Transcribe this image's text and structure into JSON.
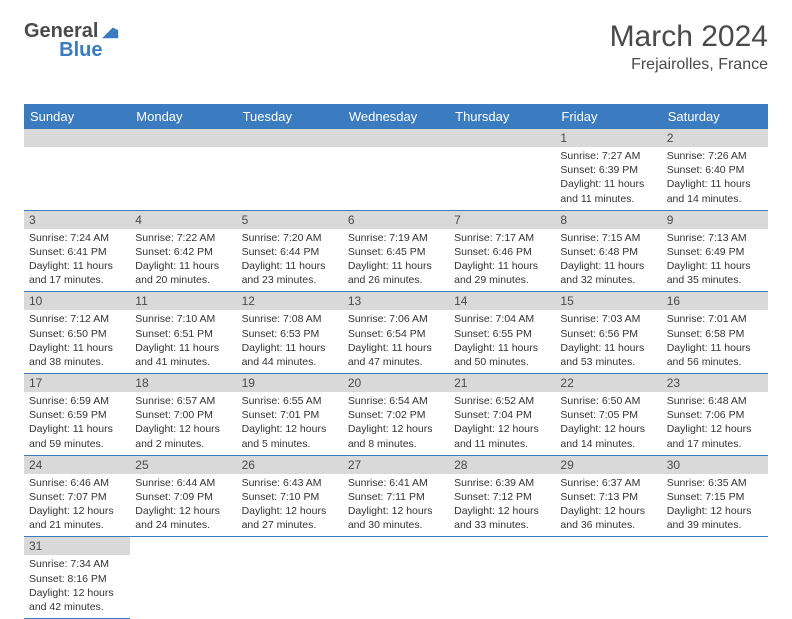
{
  "logo": {
    "part1": "General",
    "part2": "Blue"
  },
  "title": "March 2024",
  "location": "Frejairolles, France",
  "colors": {
    "header_bg": "#3b7bbf",
    "header_text": "#ffffff",
    "daynum_bg": "#d9d9d9",
    "cell_border": "#3b7bbf",
    "text": "#333333"
  },
  "weekdays": [
    "Sunday",
    "Monday",
    "Tuesday",
    "Wednesday",
    "Thursday",
    "Friday",
    "Saturday"
  ],
  "weeks": [
    [
      null,
      null,
      null,
      null,
      null,
      {
        "n": "1",
        "sunrise": "7:27 AM",
        "sunset": "6:39 PM",
        "dl_h": "11",
        "dl_m": "11"
      },
      {
        "n": "2",
        "sunrise": "7:26 AM",
        "sunset": "6:40 PM",
        "dl_h": "11",
        "dl_m": "14"
      }
    ],
    [
      {
        "n": "3",
        "sunrise": "7:24 AM",
        "sunset": "6:41 PM",
        "dl_h": "11",
        "dl_m": "17"
      },
      {
        "n": "4",
        "sunrise": "7:22 AM",
        "sunset": "6:42 PM",
        "dl_h": "11",
        "dl_m": "20"
      },
      {
        "n": "5",
        "sunrise": "7:20 AM",
        "sunset": "6:44 PM",
        "dl_h": "11",
        "dl_m": "23"
      },
      {
        "n": "6",
        "sunrise": "7:19 AM",
        "sunset": "6:45 PM",
        "dl_h": "11",
        "dl_m": "26"
      },
      {
        "n": "7",
        "sunrise": "7:17 AM",
        "sunset": "6:46 PM",
        "dl_h": "11",
        "dl_m": "29"
      },
      {
        "n": "8",
        "sunrise": "7:15 AM",
        "sunset": "6:48 PM",
        "dl_h": "11",
        "dl_m": "32"
      },
      {
        "n": "9",
        "sunrise": "7:13 AM",
        "sunset": "6:49 PM",
        "dl_h": "11",
        "dl_m": "35"
      }
    ],
    [
      {
        "n": "10",
        "sunrise": "7:12 AM",
        "sunset": "6:50 PM",
        "dl_h": "11",
        "dl_m": "38"
      },
      {
        "n": "11",
        "sunrise": "7:10 AM",
        "sunset": "6:51 PM",
        "dl_h": "11",
        "dl_m": "41"
      },
      {
        "n": "12",
        "sunrise": "7:08 AM",
        "sunset": "6:53 PM",
        "dl_h": "11",
        "dl_m": "44"
      },
      {
        "n": "13",
        "sunrise": "7:06 AM",
        "sunset": "6:54 PM",
        "dl_h": "11",
        "dl_m": "47"
      },
      {
        "n": "14",
        "sunrise": "7:04 AM",
        "sunset": "6:55 PM",
        "dl_h": "11",
        "dl_m": "50"
      },
      {
        "n": "15",
        "sunrise": "7:03 AM",
        "sunset": "6:56 PM",
        "dl_h": "11",
        "dl_m": "53"
      },
      {
        "n": "16",
        "sunrise": "7:01 AM",
        "sunset": "6:58 PM",
        "dl_h": "11",
        "dl_m": "56"
      }
    ],
    [
      {
        "n": "17",
        "sunrise": "6:59 AM",
        "sunset": "6:59 PM",
        "dl_h": "11",
        "dl_m": "59"
      },
      {
        "n": "18",
        "sunrise": "6:57 AM",
        "sunset": "7:00 PM",
        "dl_h": "12",
        "dl_m": "2"
      },
      {
        "n": "19",
        "sunrise": "6:55 AM",
        "sunset": "7:01 PM",
        "dl_h": "12",
        "dl_m": "5"
      },
      {
        "n": "20",
        "sunrise": "6:54 AM",
        "sunset": "7:02 PM",
        "dl_h": "12",
        "dl_m": "8"
      },
      {
        "n": "21",
        "sunrise": "6:52 AM",
        "sunset": "7:04 PM",
        "dl_h": "12",
        "dl_m": "11"
      },
      {
        "n": "22",
        "sunrise": "6:50 AM",
        "sunset": "7:05 PM",
        "dl_h": "12",
        "dl_m": "14"
      },
      {
        "n": "23",
        "sunrise": "6:48 AM",
        "sunset": "7:06 PM",
        "dl_h": "12",
        "dl_m": "17"
      }
    ],
    [
      {
        "n": "24",
        "sunrise": "6:46 AM",
        "sunset": "7:07 PM",
        "dl_h": "12",
        "dl_m": "21"
      },
      {
        "n": "25",
        "sunrise": "6:44 AM",
        "sunset": "7:09 PM",
        "dl_h": "12",
        "dl_m": "24"
      },
      {
        "n": "26",
        "sunrise": "6:43 AM",
        "sunset": "7:10 PM",
        "dl_h": "12",
        "dl_m": "27"
      },
      {
        "n": "27",
        "sunrise": "6:41 AM",
        "sunset": "7:11 PM",
        "dl_h": "12",
        "dl_m": "30"
      },
      {
        "n": "28",
        "sunrise": "6:39 AM",
        "sunset": "7:12 PM",
        "dl_h": "12",
        "dl_m": "33"
      },
      {
        "n": "29",
        "sunrise": "6:37 AM",
        "sunset": "7:13 PM",
        "dl_h": "12",
        "dl_m": "36"
      },
      {
        "n": "30",
        "sunrise": "6:35 AM",
        "sunset": "7:15 PM",
        "dl_h": "12",
        "dl_m": "39"
      }
    ],
    [
      {
        "n": "31",
        "sunrise": "7:34 AM",
        "sunset": "8:16 PM",
        "dl_h": "12",
        "dl_m": "42"
      },
      null,
      null,
      null,
      null,
      null,
      null
    ]
  ],
  "labels": {
    "sunrise": "Sunrise:",
    "sunset": "Sunset:",
    "daylight": "Daylight:",
    "hours": "hours",
    "and": "and",
    "minutes": "minutes."
  }
}
